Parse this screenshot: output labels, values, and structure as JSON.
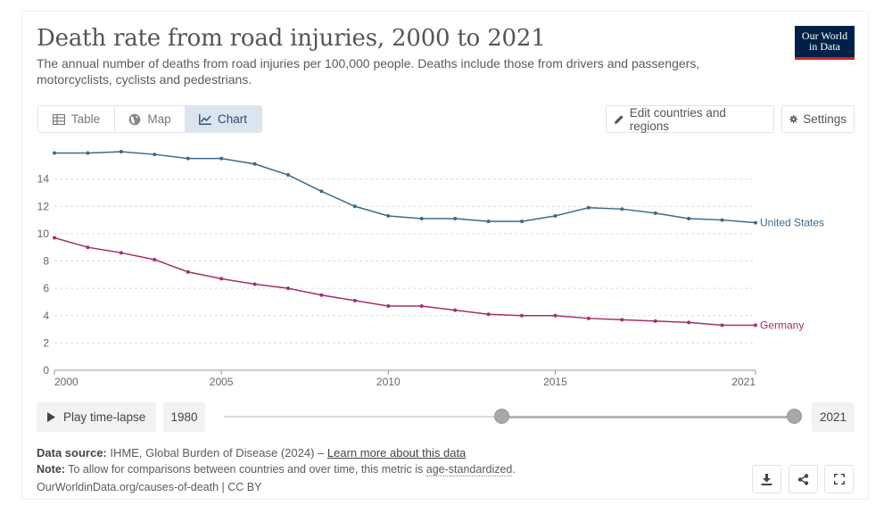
{
  "header": {
    "title": "Death rate from road injuries, 2000 to 2021",
    "subtitle": "The annual number of deaths from road injuries per 100,000 people. Deaths include those from drivers and passengers, motorcyclists, cyclists and pedestrians.",
    "logo_line1": "Our World",
    "logo_line2": "in Data",
    "logo_bg": "#002147",
    "logo_accent": "#ce261e"
  },
  "tabs": [
    {
      "label": "Table",
      "icon": "table-icon"
    },
    {
      "label": "Map",
      "icon": "globe-icon"
    },
    {
      "label": "Chart",
      "icon": "line-chart-icon",
      "active": true
    }
  ],
  "controls": {
    "edit_label": "Edit countries and regions",
    "settings_label": "Settings"
  },
  "chart_data": {
    "type": "line",
    "title": "Death rate from road injuries, 2000 to 2021",
    "xlabel": "",
    "ylabel": "",
    "xlim": [
      2000,
      2021
    ],
    "ylim": [
      0,
      16
    ],
    "x_ticks": [
      "2000",
      "2005",
      "2010",
      "2015",
      "2021"
    ],
    "x_tick_values": [
      2000,
      2005,
      2010,
      2015,
      2021
    ],
    "y_ticks": [
      "0",
      "2",
      "4",
      "6",
      "8",
      "10",
      "12",
      "14"
    ],
    "y_tick_values": [
      0,
      2,
      4,
      6,
      8,
      10,
      12,
      14
    ],
    "grid": "horizontal dotted",
    "x": [
      2000,
      2001,
      2002,
      2003,
      2004,
      2005,
      2006,
      2007,
      2008,
      2009,
      2010,
      2011,
      2012,
      2013,
      2014,
      2015,
      2016,
      2017,
      2018,
      2019,
      2020,
      2021
    ],
    "series": [
      {
        "name": "United States",
        "color": "#3b6a8c",
        "values": [
          15.9,
          15.9,
          16.0,
          15.8,
          15.5,
          15.5,
          15.1,
          14.3,
          13.1,
          12.0,
          11.3,
          11.1,
          11.1,
          10.9,
          10.9,
          11.3,
          11.9,
          11.8,
          11.5,
          11.1,
          11.0,
          10.8
        ]
      },
      {
        "name": "Germany",
        "color": "#a2306c",
        "values": [
          9.7,
          9.0,
          8.6,
          8.1,
          7.2,
          6.7,
          6.3,
          6.0,
          5.5,
          5.1,
          4.7,
          4.7,
          4.4,
          4.1,
          4.0,
          4.0,
          3.8,
          3.7,
          3.6,
          3.5,
          3.3,
          3.3
        ]
      }
    ]
  },
  "timeline": {
    "play_label": "Play time-lapse",
    "start_year": "1980",
    "end_year": "2021"
  },
  "footer": {
    "source_label": "Data source:",
    "source_text": "IHME, Global Burden of Disease (2024) –",
    "learn_more": "Learn more about this data",
    "note_label": "Note:",
    "note_text": "To allow for comparisons between countries and over time, this metric is",
    "note_link": "age-standardized",
    "note_end": ".",
    "url_text": "OurWorldinData.org/causes-of-death | CC BY"
  }
}
